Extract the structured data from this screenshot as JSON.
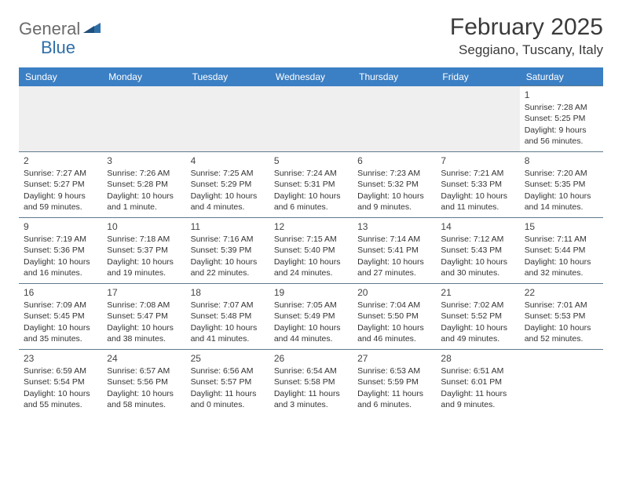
{
  "logo": {
    "word1": "General",
    "word2": "Blue"
  },
  "header": {
    "title": "February 2025",
    "location": "Seggiano, Tuscany, Italy"
  },
  "colors": {
    "header_bg": "#3b7fc4",
    "header_text": "#ffffff",
    "grid_border": "#5e7a8c",
    "blank_bg": "#efefef",
    "logo_gray": "#6b6b6b",
    "logo_blue": "#2f6fa8",
    "body_text": "#333333"
  },
  "weekdays": [
    "Sunday",
    "Monday",
    "Tuesday",
    "Wednesday",
    "Thursday",
    "Friday",
    "Saturday"
  ],
  "layout": {
    "columns": 7,
    "rows": 5,
    "first_weekday_index": 6,
    "days_in_month": 28
  },
  "days": {
    "1": {
      "sunrise": "7:28 AM",
      "sunset": "5:25 PM",
      "daylight": "9 hours and 56 minutes."
    },
    "2": {
      "sunrise": "7:27 AM",
      "sunset": "5:27 PM",
      "daylight": "9 hours and 59 minutes."
    },
    "3": {
      "sunrise": "7:26 AM",
      "sunset": "5:28 PM",
      "daylight": "10 hours and 1 minute."
    },
    "4": {
      "sunrise": "7:25 AM",
      "sunset": "5:29 PM",
      "daylight": "10 hours and 4 minutes."
    },
    "5": {
      "sunrise": "7:24 AM",
      "sunset": "5:31 PM",
      "daylight": "10 hours and 6 minutes."
    },
    "6": {
      "sunrise": "7:23 AM",
      "sunset": "5:32 PM",
      "daylight": "10 hours and 9 minutes."
    },
    "7": {
      "sunrise": "7:21 AM",
      "sunset": "5:33 PM",
      "daylight": "10 hours and 11 minutes."
    },
    "8": {
      "sunrise": "7:20 AM",
      "sunset": "5:35 PM",
      "daylight": "10 hours and 14 minutes."
    },
    "9": {
      "sunrise": "7:19 AM",
      "sunset": "5:36 PM",
      "daylight": "10 hours and 16 minutes."
    },
    "10": {
      "sunrise": "7:18 AM",
      "sunset": "5:37 PM",
      "daylight": "10 hours and 19 minutes."
    },
    "11": {
      "sunrise": "7:16 AM",
      "sunset": "5:39 PM",
      "daylight": "10 hours and 22 minutes."
    },
    "12": {
      "sunrise": "7:15 AM",
      "sunset": "5:40 PM",
      "daylight": "10 hours and 24 minutes."
    },
    "13": {
      "sunrise": "7:14 AM",
      "sunset": "5:41 PM",
      "daylight": "10 hours and 27 minutes."
    },
    "14": {
      "sunrise": "7:12 AM",
      "sunset": "5:43 PM",
      "daylight": "10 hours and 30 minutes."
    },
    "15": {
      "sunrise": "7:11 AM",
      "sunset": "5:44 PM",
      "daylight": "10 hours and 32 minutes."
    },
    "16": {
      "sunrise": "7:09 AM",
      "sunset": "5:45 PM",
      "daylight": "10 hours and 35 minutes."
    },
    "17": {
      "sunrise": "7:08 AM",
      "sunset": "5:47 PM",
      "daylight": "10 hours and 38 minutes."
    },
    "18": {
      "sunrise": "7:07 AM",
      "sunset": "5:48 PM",
      "daylight": "10 hours and 41 minutes."
    },
    "19": {
      "sunrise": "7:05 AM",
      "sunset": "5:49 PM",
      "daylight": "10 hours and 44 minutes."
    },
    "20": {
      "sunrise": "7:04 AM",
      "sunset": "5:50 PM",
      "daylight": "10 hours and 46 minutes."
    },
    "21": {
      "sunrise": "7:02 AM",
      "sunset": "5:52 PM",
      "daylight": "10 hours and 49 minutes."
    },
    "22": {
      "sunrise": "7:01 AM",
      "sunset": "5:53 PM",
      "daylight": "10 hours and 52 minutes."
    },
    "23": {
      "sunrise": "6:59 AM",
      "sunset": "5:54 PM",
      "daylight": "10 hours and 55 minutes."
    },
    "24": {
      "sunrise": "6:57 AM",
      "sunset": "5:56 PM",
      "daylight": "10 hours and 58 minutes."
    },
    "25": {
      "sunrise": "6:56 AM",
      "sunset": "5:57 PM",
      "daylight": "11 hours and 0 minutes."
    },
    "26": {
      "sunrise": "6:54 AM",
      "sunset": "5:58 PM",
      "daylight": "11 hours and 3 minutes."
    },
    "27": {
      "sunrise": "6:53 AM",
      "sunset": "5:59 PM",
      "daylight": "11 hours and 6 minutes."
    },
    "28": {
      "sunrise": "6:51 AM",
      "sunset": "6:01 PM",
      "daylight": "11 hours and 9 minutes."
    }
  },
  "labels": {
    "sunrise": "Sunrise: ",
    "sunset": "Sunset: ",
    "daylight": "Daylight: "
  }
}
